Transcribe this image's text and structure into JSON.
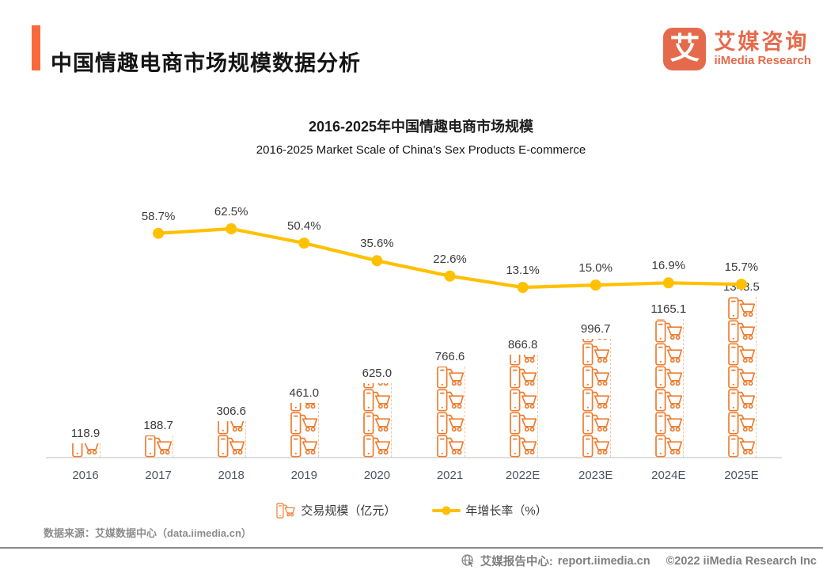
{
  "header": {
    "title": "中国情趣电商市场规模数据分析"
  },
  "logo": {
    "mark": "艾",
    "name_cn": "艾媒咨询",
    "name_en": "iiMedia Research"
  },
  "chart": {
    "title_cn": "2016-2025年中国情趣电商市场规模",
    "title_en": "2016-2025 Market Scale of China's Sex Products E-commerce"
  },
  "chart_data": {
    "type": "bar",
    "subtype": "pictogram-bars-with-growth-line",
    "title": "2016-2025年中国情趣电商市场规模",
    "subtitle": "2016-2025 Market Scale of China's Sex Products E-commerce",
    "categories": [
      "2016",
      "2017",
      "2018",
      "2019",
      "2020",
      "2021",
      "2022E",
      "2023E",
      "2024E",
      "2025E"
    ],
    "series": [
      {
        "name": "交易规模（亿元）",
        "type": "pictogram-bar",
        "unit": "亿元",
        "color": "#ED7D31",
        "values": [
          118.9,
          188.7,
          306.6,
          461.0,
          625.0,
          766.6,
          866.8,
          996.7,
          1165.1,
          1348.5
        ]
      },
      {
        "name": "年增长率（%）",
        "type": "line",
        "unit": "%",
        "color": "#FFC000",
        "values": [
          null,
          58.7,
          62.5,
          50.4,
          35.6,
          22.6,
          13.1,
          15.0,
          16.9,
          15.7
        ]
      }
    ],
    "legend_position": "bottom",
    "grid": false,
    "axis": {
      "x_labels_visible": true,
      "y_axis_visible": false,
      "baseline_color": "#dedede"
    }
  },
  "legend": {
    "bar_label": "交易规模（亿元）",
    "line_label": "年增长率（%）"
  },
  "footer": {
    "source": "数据来源：艾媒数据中心（data.iimedia.cn）",
    "report_center_label": "艾媒报告中心:",
    "report_url": "report.iimedia.cn",
    "copyright": "©2022  iiMedia Research  Inc"
  }
}
